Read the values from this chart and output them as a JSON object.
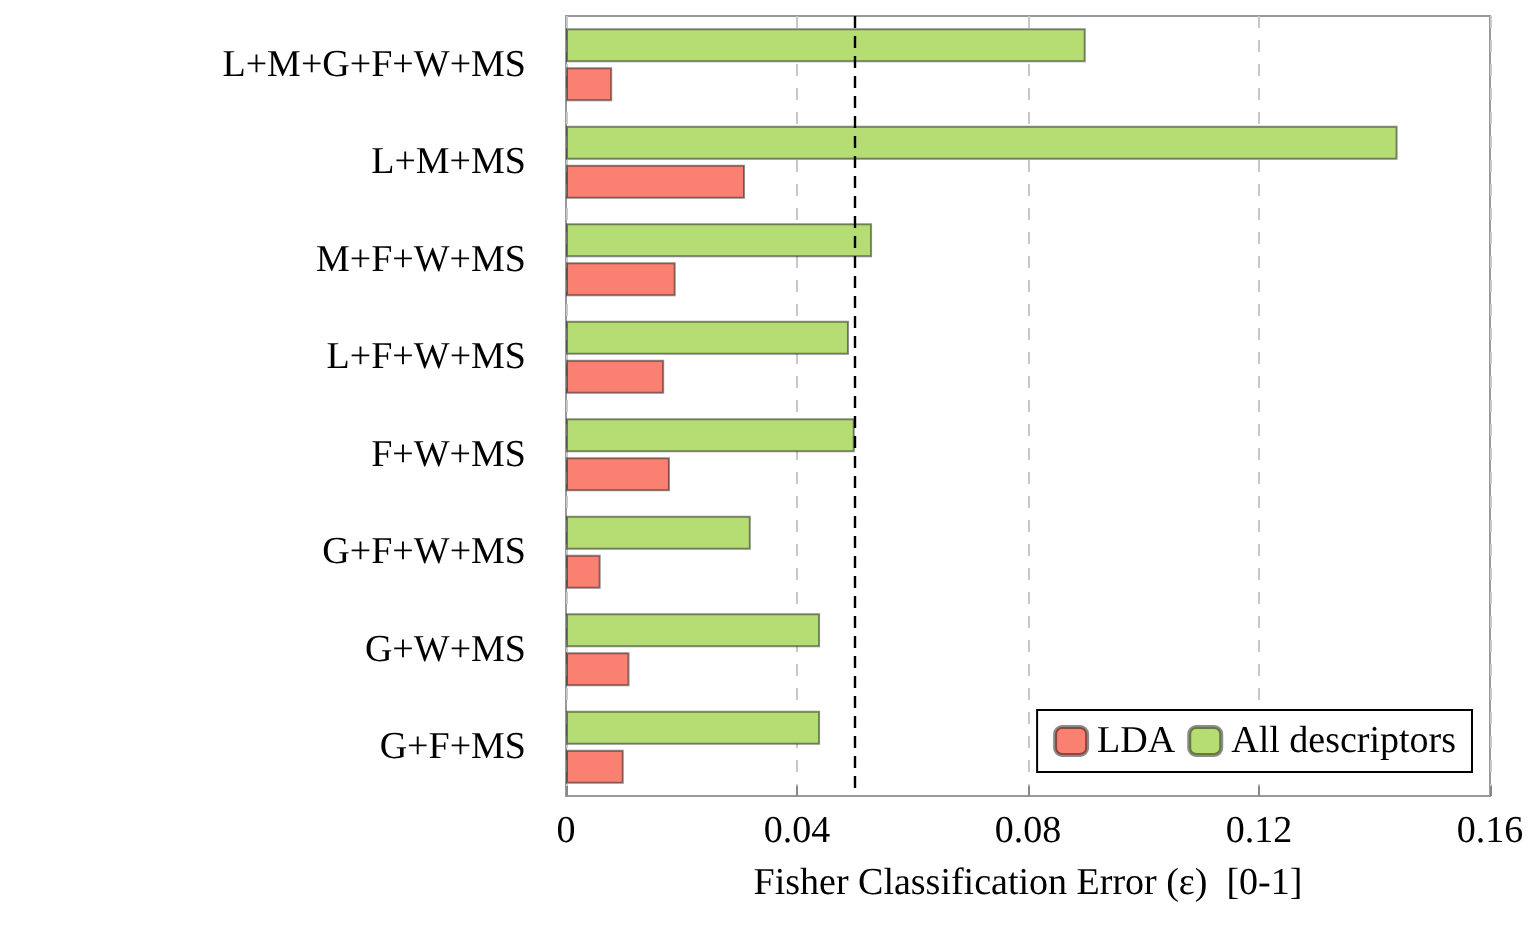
{
  "chart_data": {
    "type": "bar",
    "orientation": "horizontal",
    "xlabel": "Fisher Classification Error (ε)  [0-1]",
    "categories": [
      "L+M+G+F+W+MS",
      "L+M+MS",
      "M+F+W+MS",
      "L+F+W+MS",
      "F+W+MS",
      "G+F+W+MS",
      "G+W+MS",
      "G+F+MS"
    ],
    "series": [
      {
        "name": "LDA",
        "color": "#fa8072",
        "values": [
          0.008,
          0.031,
          0.019,
          0.017,
          0.018,
          0.006,
          0.011,
          0.01
        ]
      },
      {
        "name": "All descriptors",
        "color": "#b5dd73",
        "values": [
          0.09,
          0.144,
          0.053,
          0.049,
          0.05,
          0.032,
          0.044,
          0.044
        ]
      }
    ],
    "xlim": [
      0,
      0.16
    ],
    "xticks": [
      0,
      0.04,
      0.08,
      0.12,
      0.16
    ],
    "grid": "x",
    "legend": "bottom right",
    "ref_lines": [
      {
        "axis": "x",
        "value": 0.05,
        "color": "#000000",
        "line_style": "dashed"
      }
    ]
  }
}
